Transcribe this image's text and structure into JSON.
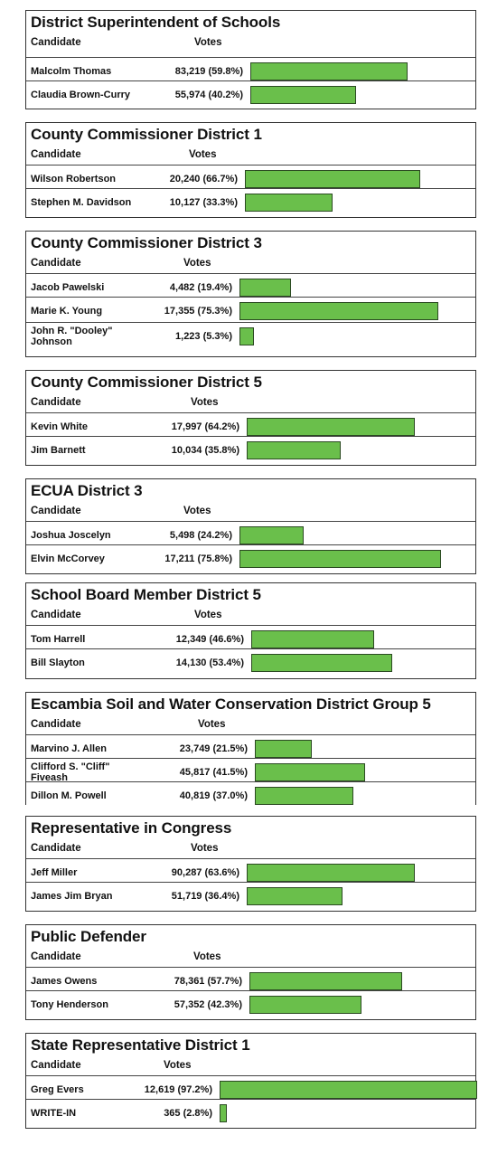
{
  "headers": {
    "candidate": "Candidate",
    "votes": "Votes"
  },
  "colors": {
    "bar_fill": "#6abf4b",
    "bar_border": "#2b4a22"
  },
  "chart_data": [
    {
      "type": "bar",
      "title": "District Superintendent of Schools",
      "categories": [
        "Malcolm Thomas",
        "Claudia Brown-Curry"
      ],
      "values": [
        83219,
        55974
      ],
      "vote_labels": [
        "83,219  (59.8%)",
        "55,974  (40.2%)"
      ],
      "percents": [
        59.8,
        40.2
      ]
    },
    {
      "type": "bar",
      "title": "County Commissioner District 1",
      "categories": [
        "Wilson Robertson",
        "Stephen M. Davidson"
      ],
      "values": [
        20240,
        10127
      ],
      "vote_labels": [
        "20,240  (66.7%)",
        "10,127  (33.3%)"
      ],
      "percents": [
        66.7,
        33.3
      ]
    },
    {
      "type": "bar",
      "title": "County Commissioner District 3",
      "categories": [
        "Jacob Pawelski",
        "Marie K. Young",
        "John R. \"Dooley\"\nJohnson"
      ],
      "values": [
        4482,
        17355,
        1223
      ],
      "vote_labels": [
        "4,482  (19.4%)",
        "17,355  (75.3%)",
        "1,223   (5.3%)"
      ],
      "percents": [
        19.4,
        75.3,
        5.3
      ]
    },
    {
      "type": "bar",
      "title": "County Commissioner District 5",
      "categories": [
        "Kevin White",
        "Jim Barnett"
      ],
      "values": [
        17997,
        10034
      ],
      "vote_labels": [
        "17,997  (64.2%)",
        "10,034  (35.8%)"
      ],
      "percents": [
        64.2,
        35.8
      ]
    },
    {
      "type": "bar",
      "title": "ECUA District 3",
      "categories": [
        "Joshua Joscelyn",
        "Elvin McCorvey"
      ],
      "values": [
        5498,
        17211
      ],
      "vote_labels": [
        "5,498  (24.2%)",
        "17,211  (75.8%)"
      ],
      "percents": [
        24.2,
        75.8
      ]
    },
    {
      "type": "bar",
      "title": "School Board Member District 5",
      "categories": [
        "Tom Harrell",
        "Bill Slayton"
      ],
      "values": [
        12349,
        14130
      ],
      "vote_labels": [
        "12,349  (46.6%)",
        "14,130  (53.4%)"
      ],
      "percents": [
        46.6,
        53.4
      ]
    },
    {
      "type": "bar",
      "title": "Escambia Soil and Water Conservation District Group 5",
      "categories": [
        "Marvino J. Allen",
        "Clifford S. \"Cliff\" Fiveash",
        "Dillon M. Powell"
      ],
      "values": [
        23749,
        45817,
        40819
      ],
      "vote_labels": [
        "23,749  (21.5%)",
        "45,817  (41.5%)",
        "40,819  (37.0%)"
      ],
      "percents": [
        21.5,
        41.5,
        37.0
      ]
    },
    {
      "type": "bar",
      "title": "Representative in Congress",
      "categories": [
        "Jeff Miller",
        "James Jim Bryan"
      ],
      "values": [
        90287,
        51719
      ],
      "vote_labels": [
        "90,287  (63.6%)",
        "51,719  (36.4%)"
      ],
      "percents": [
        63.6,
        36.4
      ]
    },
    {
      "type": "bar",
      "title": "Public Defender",
      "categories": [
        "James Owens",
        "Tony Henderson"
      ],
      "values": [
        78361,
        57352
      ],
      "vote_labels": [
        "78,361  (57.7%)",
        "57,352  (42.3%)"
      ],
      "percents": [
        57.7,
        42.3
      ]
    },
    {
      "type": "bar",
      "title": "State Representative District 1",
      "categories": [
        "Greg Evers",
        "WRITE-IN"
      ],
      "values": [
        12619,
        365
      ],
      "vote_labels": [
        "12,619  (97.2%)",
        "365   (2.8%)"
      ],
      "percents": [
        97.2,
        2.8
      ]
    }
  ]
}
